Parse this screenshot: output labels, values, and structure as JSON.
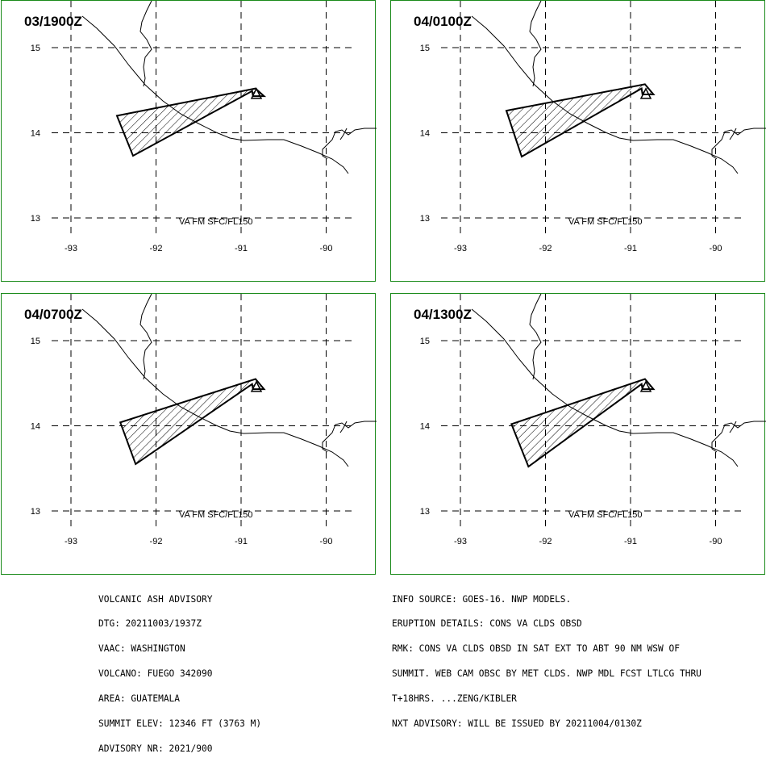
{
  "panels": [
    {
      "title": "03/1900Z",
      "flight_level": "VA FM SFC/FL150",
      "ash_cloud": [
        [
          -90.83,
          14.52
        ],
        [
          -90.73,
          14.43
        ],
        [
          -90.86,
          14.43
        ],
        [
          -90.87,
          14.49
        ],
        [
          -92.27,
          13.73
        ],
        [
          -92.46,
          14.2
        ]
      ]
    },
    {
      "title": "04/0100Z",
      "flight_level": "VA FM SFC/FL150",
      "ash_cloud": [
        [
          -90.83,
          14.57
        ],
        [
          -90.73,
          14.45
        ],
        [
          -90.86,
          14.45
        ],
        [
          -90.87,
          14.52
        ],
        [
          -92.28,
          13.72
        ],
        [
          -92.46,
          14.26
        ]
      ]
    },
    {
      "title": "04/0700Z",
      "flight_level": "VA FM SFC/FL150",
      "ash_cloud": [
        [
          -90.83,
          14.55
        ],
        [
          -90.73,
          14.43
        ],
        [
          -90.86,
          14.43
        ],
        [
          -90.87,
          14.49
        ],
        [
          -92.24,
          13.55
        ],
        [
          -92.42,
          14.04
        ]
      ]
    },
    {
      "title": "04/1300Z",
      "flight_level": "VA FM SFC/FL150",
      "ash_cloud": [
        [
          -90.83,
          14.55
        ],
        [
          -90.73,
          14.43
        ],
        [
          -90.86,
          14.43
        ],
        [
          -90.87,
          14.49
        ],
        [
          -92.2,
          13.52
        ],
        [
          -92.4,
          14.02
        ]
      ]
    }
  ],
  "map": {
    "lon_ticks": [
      "-93",
      "-92",
      "-91",
      "-90"
    ],
    "lat_ticks": [
      "15",
      "14",
      "13"
    ],
    "colors": {
      "frame": "#1a8a1a",
      "lines": "#000000"
    }
  },
  "advisory_left": [
    "VOLCANIC ASH ADVISORY",
    "DTG: 20211003/1937Z",
    "VAAC: WASHINGTON",
    "VOLCANO: FUEGO 342090",
    "AREA: GUATEMALA",
    "SUMMIT ELEV: 12346 FT (3763 M)",
    "ADVISORY NR: 2021/900"
  ],
  "advisory_right": [
    "INFO SOURCE: GOES-16. NWP MODELS.",
    "ERUPTION DETAILS: CONS VA CLDS OBSD",
    "RMK: CONS VA CLDS OBSD IN SAT EXT TO ABT 90 NM WSW OF",
    "SUMMIT. WEB CAM OBSC BY MET CLDS. NWP MDL FCST LTLCG THRU",
    "T+18HRS. ...ZENG/KIBLER",
    "NXT ADVISORY: WILL BE ISSUED BY 20211004/0130Z"
  ]
}
